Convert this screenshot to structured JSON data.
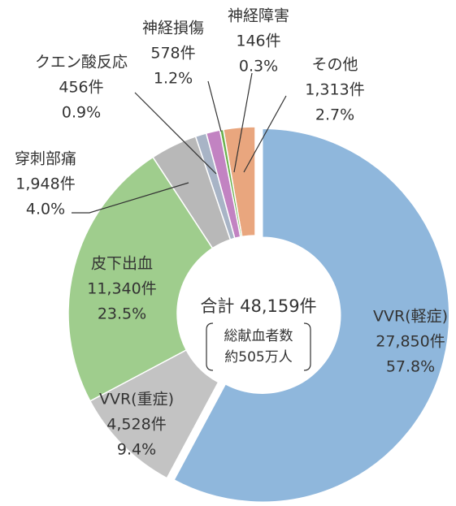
{
  "chart_data": {
    "type": "donut",
    "categories": [
      "VVR(軽症)",
      "VVR(重症)",
      "皮下出血",
      "穿刺部痛",
      "クエン酸反応",
      "神経損傷",
      "神経障害",
      "その他"
    ],
    "values": [
      27850,
      4528,
      11340,
      1948,
      456,
      578,
      146,
      1313
    ],
    "value_labels": [
      "27,850件",
      "4,528件",
      "11,340件",
      "1,948件",
      "456件",
      "578件",
      "146件",
      "1,313件"
    ],
    "percents": [
      57.8,
      9.4,
      23.5,
      4.0,
      0.9,
      1.2,
      0.3,
      2.7
    ],
    "percent_labels": [
      "57.8%",
      "9.4%",
      "23.5%",
      "4.0%",
      "0.9%",
      "1.2%",
      "0.3%",
      "2.7%"
    ],
    "colors": [
      "#8fb7dc",
      "#c3c3c3",
      "#9fcd8d",
      "#b8b8b8",
      "#a8b4c6",
      "#c283c2",
      "#6cb24e",
      "#e9a67e"
    ],
    "total_label": "合計 48,159件",
    "note": [
      "総献血者数",
      "約505万人"
    ]
  }
}
